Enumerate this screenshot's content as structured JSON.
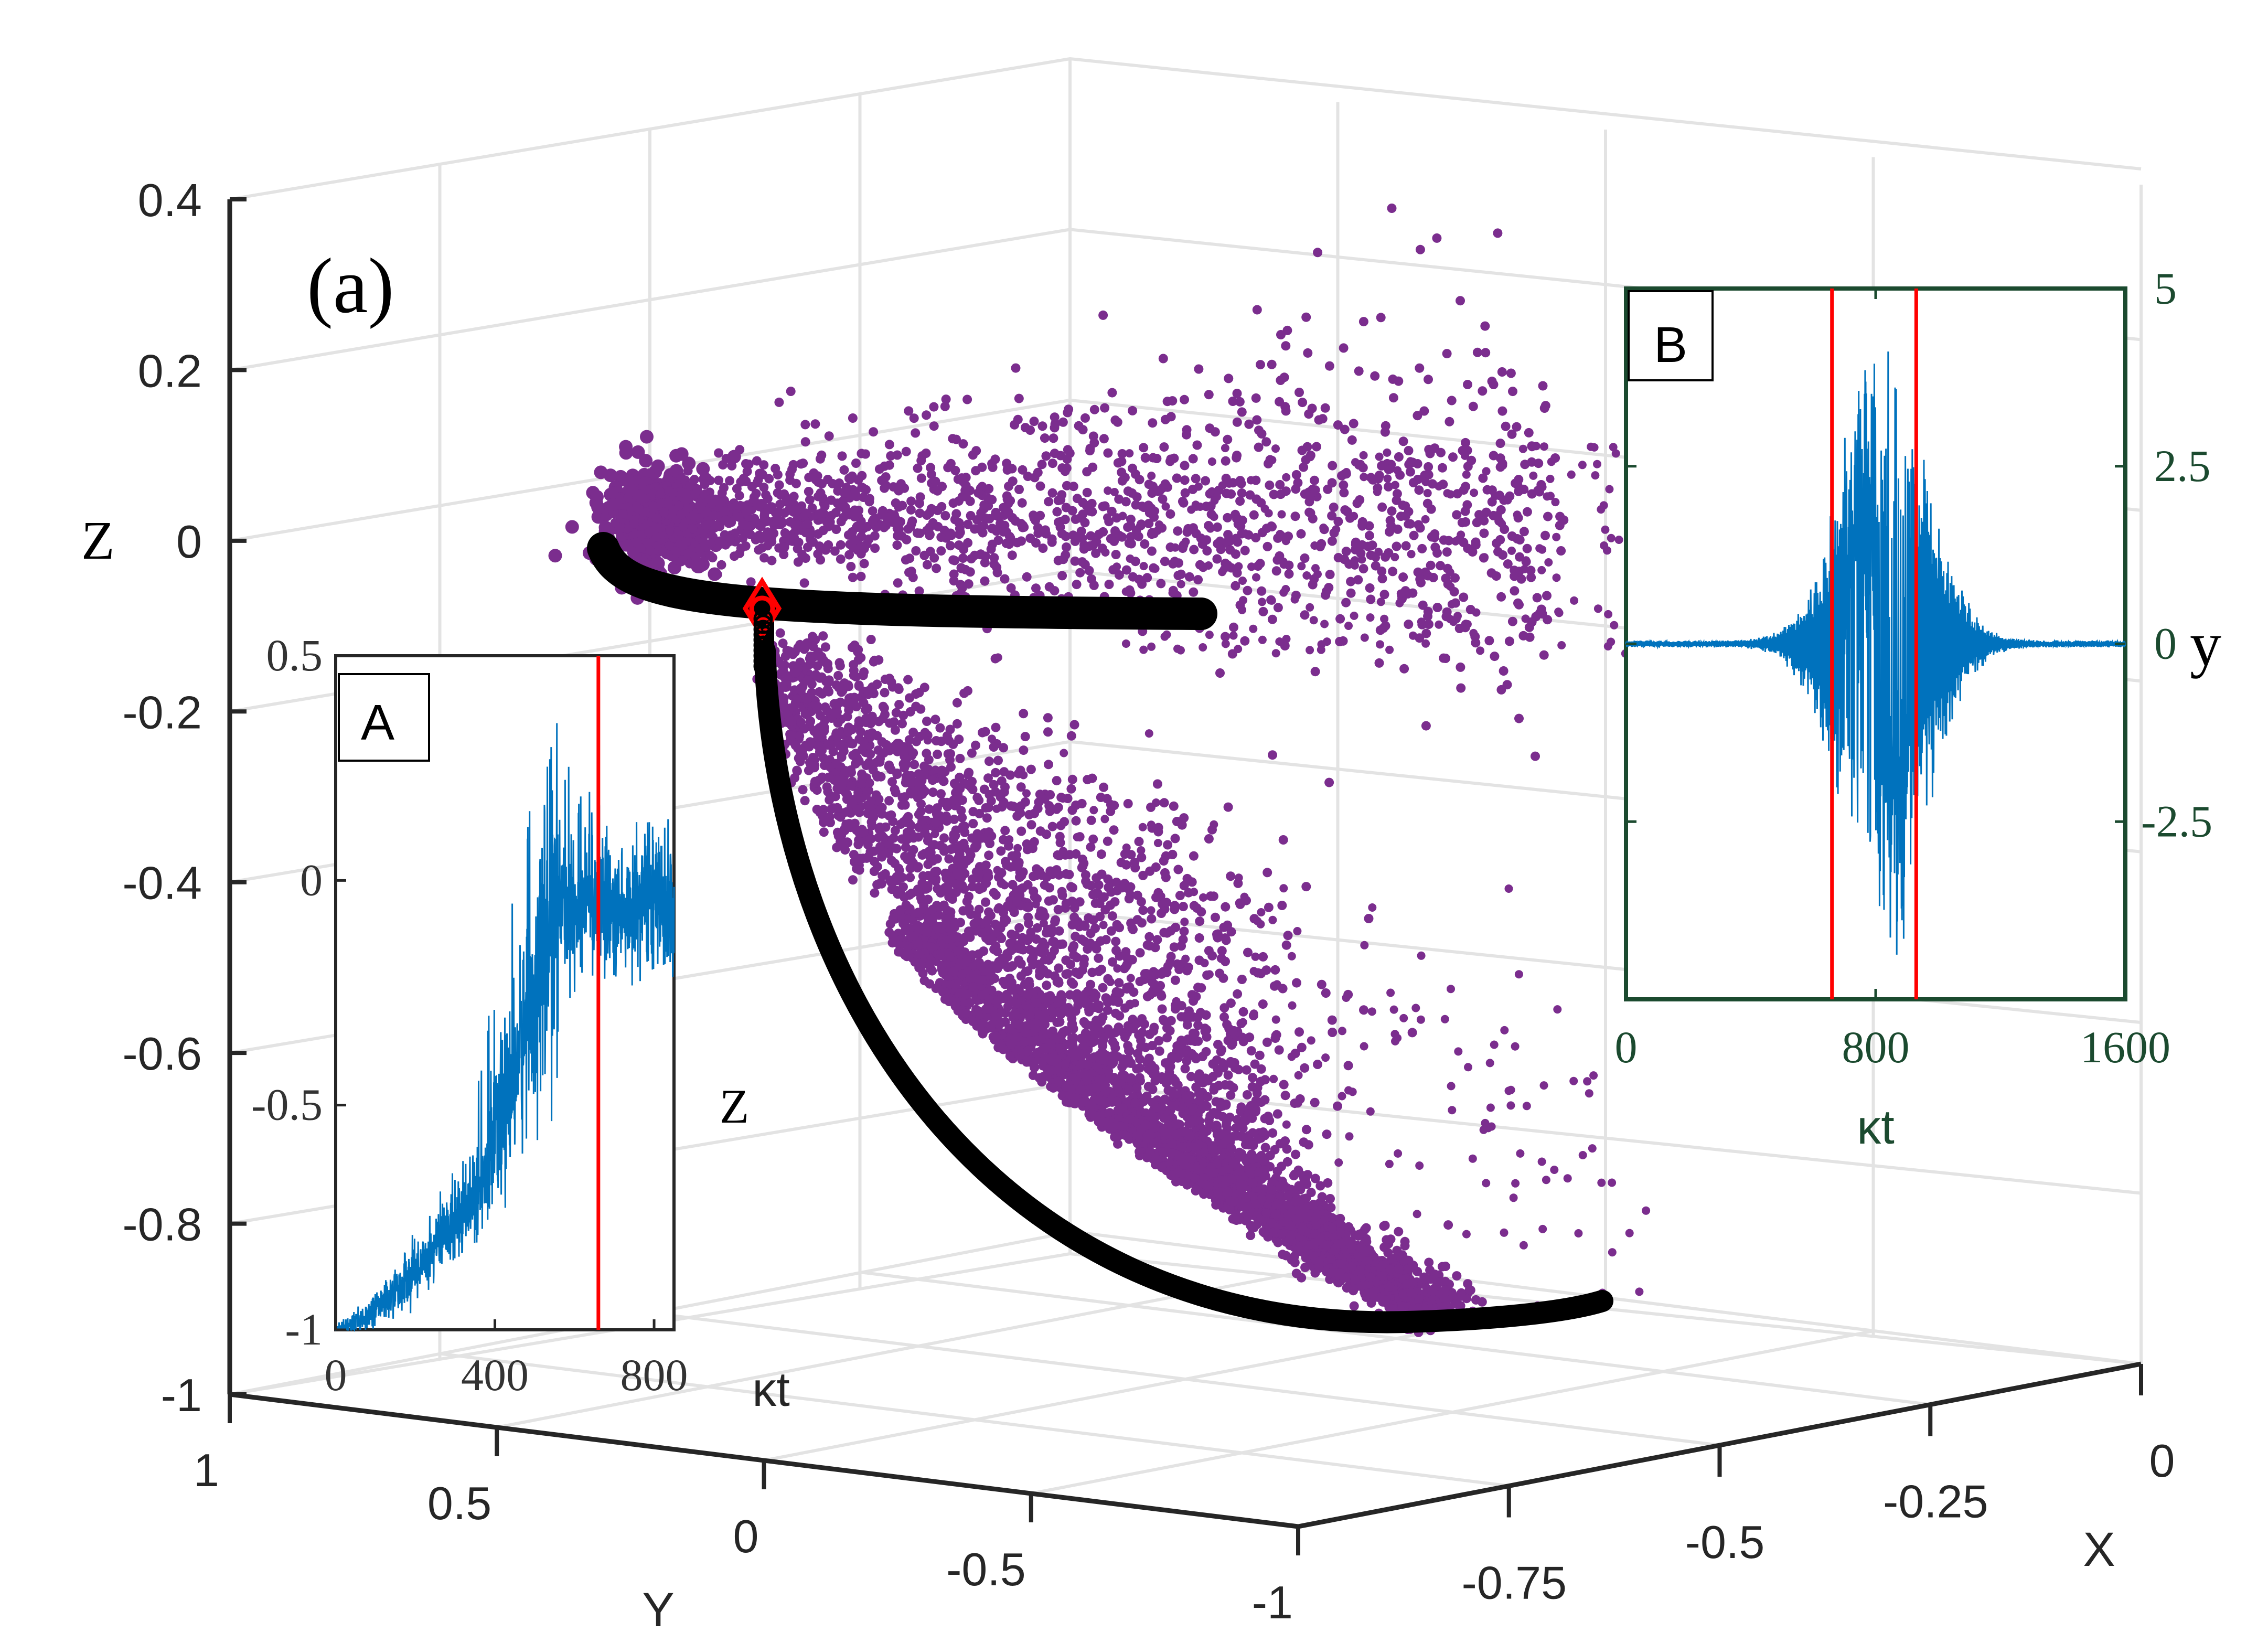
{
  "panel_label": "(a)",
  "chart_data": [
    {
      "type": "scatter",
      "subtype": "3d",
      "z_axis": {
        "label": "Z",
        "range": [
          -1,
          0.4
        ],
        "ticks": [
          "0.4",
          "0.2",
          "0",
          "-0.2",
          "-0.4",
          "-0.6",
          "-0.8",
          "-1"
        ]
      },
      "y_axis": {
        "label": "Y",
        "range": [
          -1,
          1
        ],
        "ticks": [
          "1",
          "0.5",
          "0",
          "-0.5",
          "-1"
        ]
      },
      "x_axis": {
        "label": "X",
        "range": [
          -1,
          0
        ],
        "ticks": [
          "-0.75",
          "-0.5",
          "-0.25",
          "0"
        ]
      },
      "series": [
        {
          "name": "stochastic trajectory points",
          "color": "#7B2D8E",
          "marker": "dot"
        },
        {
          "name": "deterministic trajectory",
          "color": "#000000",
          "marker": "circle"
        },
        {
          "name": "marked point",
          "color": "#FF0000",
          "marker": "diamond"
        }
      ],
      "grid": true
    },
    {
      "type": "line",
      "inset": "A",
      "label": "A",
      "xlabel": "κt",
      "ylabel": "Z",
      "xlim": [
        0,
        850
      ],
      "ylim": [
        -1,
        0.5
      ],
      "xticks": [
        "0",
        "400",
        "800"
      ],
      "yticks": [
        "0.5",
        "0",
        "-0.5",
        "-1"
      ],
      "series_color": "#0072BD",
      "vline": {
        "x": 660,
        "color": "#FF0000"
      }
    },
    {
      "type": "line",
      "inset": "B",
      "label": "B",
      "xlabel": "κt",
      "ylabel": "y",
      "xlim": [
        0,
        1600
      ],
      "ylim": [
        -5,
        5
      ],
      "xticks": [
        "0",
        "800",
        "1600"
      ],
      "yticks": [
        "5",
        "2.5",
        "0",
        "-2.5"
      ],
      "series_color": "#0072BD",
      "vlines": [
        {
          "x": 660,
          "color": "#FF0000"
        },
        {
          "x": 930,
          "color": "#FF0000"
        }
      ]
    }
  ]
}
